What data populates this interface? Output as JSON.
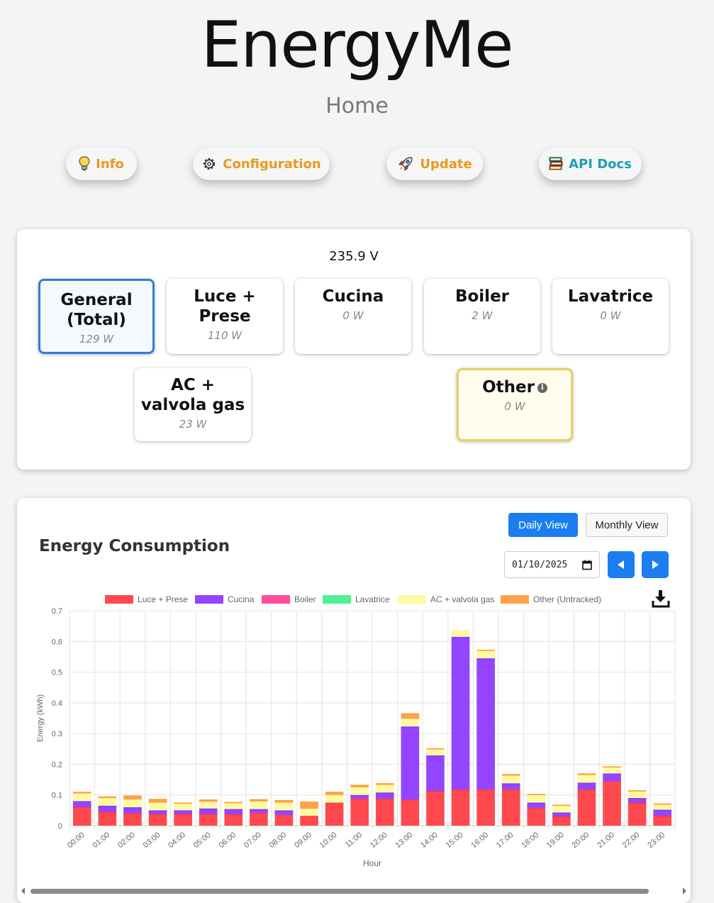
{
  "header": {
    "title": "EnergyMe",
    "subtitle": "Home"
  },
  "nav": {
    "info": "Info",
    "configuration": "Configuration",
    "update": "Update",
    "api_docs": "API Docs"
  },
  "power": {
    "voltage": "235.9 V",
    "channels": [
      {
        "name": "General (Total)",
        "power": "129 W"
      },
      {
        "name": "Luce + Prese",
        "power": "110 W"
      },
      {
        "name": "Cucina",
        "power": "0 W"
      },
      {
        "name": "Boiler",
        "power": "2 W"
      },
      {
        "name": "Lavatrice",
        "power": "0 W"
      },
      {
        "name": "AC + valvola gas",
        "power": "23 W"
      },
      {
        "name": "Other",
        "power": "0 W"
      }
    ]
  },
  "energy": {
    "title": "Energy Consumption",
    "daily_view": "Daily View",
    "monthly_view": "Monthly View",
    "date": "01/10/2025"
  },
  "colors": {
    "accent": "#1a7ef0",
    "nav_orange": "#e89a1e",
    "nav_teal": "#1d9fb8"
  },
  "chart_data": {
    "type": "bar",
    "stacked": true,
    "xlabel": "Hour",
    "ylabel": "Energy (kWh)",
    "ylim": [
      0,
      0.7
    ],
    "yticks": [
      "0",
      "0.1",
      "0.2",
      "0.3",
      "0.4",
      "0.5",
      "0.6",
      "0.7"
    ],
    "grid": true,
    "legend_position": "top",
    "categories": [
      "00:00",
      "01:00",
      "02:00",
      "03:00",
      "04:00",
      "05:00",
      "06:00",
      "07:00",
      "08:00",
      "09:00",
      "10:00",
      "11:00",
      "12:00",
      "13:00",
      "14:00",
      "15:00",
      "16:00",
      "17:00",
      "18:00",
      "19:00",
      "20:00",
      "21:00",
      "22:00",
      "23:00"
    ],
    "series": [
      {
        "name": "Luce + Prese",
        "color": "#ff3a3f",
        "values": [
          0.06,
          0.045,
          0.04,
          0.038,
          0.038,
          0.038,
          0.037,
          0.042,
          0.035,
          0.032,
          0.075,
          0.088,
          0.088,
          0.085,
          0.113,
          0.118,
          0.118,
          0.118,
          0.058,
          0.03,
          0.118,
          0.145,
          0.075,
          0.032
        ]
      },
      {
        "name": "Cucina",
        "color": "#8a35ff",
        "values": [
          0.02,
          0.02,
          0.02,
          0.012,
          0.012,
          0.018,
          0.017,
          0.012,
          0.015,
          0.0,
          0.0,
          0.012,
          0.02,
          0.238,
          0.116,
          0.497,
          0.427,
          0.02,
          0.017,
          0.013,
          0.022,
          0.025,
          0.015,
          0.02
        ]
      },
      {
        "name": "Boiler",
        "color": "#ff3d8f",
        "values": [
          0,
          0,
          0,
          0,
          0,
          0,
          0,
          0,
          0,
          0,
          0,
          0,
          0,
          0,
          0,
          0,
          0,
          0,
          0,
          0,
          0,
          0,
          0,
          0
        ]
      },
      {
        "name": "Lavatrice",
        "color": "#3ff08a",
        "values": [
          0,
          0,
          0,
          0,
          0,
          0,
          0,
          0,
          0,
          0,
          0,
          0,
          0,
          0,
          0,
          0,
          0,
          0,
          0,
          0,
          0,
          0,
          0,
          0
        ]
      },
      {
        "name": "AC + valvola gas",
        "color": "#fffa9a",
        "values": [
          0.025,
          0.025,
          0.025,
          0.025,
          0.022,
          0.022,
          0.02,
          0.025,
          0.025,
          0.023,
          0.025,
          0.025,
          0.025,
          0.025,
          0.02,
          0.022,
          0.025,
          0.025,
          0.025,
          0.022,
          0.025,
          0.02,
          0.022,
          0.017
        ]
      },
      {
        "name": "Other (Untracked)",
        "color": "#ff9a3c",
        "values": [
          0.005,
          0.005,
          0.013,
          0.012,
          0.003,
          0.007,
          0.003,
          0.007,
          0.008,
          0.023,
          0.01,
          0.008,
          0.005,
          0.018,
          0.003,
          0.0,
          0.003,
          0.005,
          0.003,
          0.003,
          0.005,
          0.003,
          0.003,
          0.003
        ]
      }
    ]
  }
}
